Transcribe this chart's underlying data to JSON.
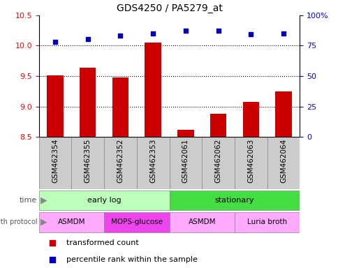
{
  "title": "GDS4250 / PA5279_at",
  "samples": [
    "GSM462354",
    "GSM462355",
    "GSM462352",
    "GSM462353",
    "GSM462061",
    "GSM462062",
    "GSM462063",
    "GSM462064"
  ],
  "bar_values": [
    9.51,
    9.64,
    9.48,
    10.05,
    8.62,
    8.88,
    9.08,
    9.25
  ],
  "percentile_values": [
    78,
    80,
    83,
    85,
    87,
    87,
    84,
    85
  ],
  "ylim_left": [
    8.5,
    10.5
  ],
  "ylim_right": [
    0,
    100
  ],
  "yticks_left": [
    8.5,
    9.0,
    9.5,
    10.0,
    10.5
  ],
  "yticks_right": [
    0,
    25,
    50,
    75,
    100
  ],
  "ytick_labels_right": [
    "0",
    "25",
    "50",
    "75",
    "100%"
  ],
  "bar_color": "#cc0000",
  "dot_color": "#0000bb",
  "bar_bottom": 8.5,
  "dotted_line_y": [
    9.0,
    9.5,
    10.0
  ],
  "time_early_color": "#bbffbb",
  "time_stationary_color": "#44dd44",
  "growth_asmdm_color": "#ffaaff",
  "growth_mops_color": "#ee44ee",
  "growth_luria_color": "#ffaaff",
  "sample_label_bg": "#cccccc",
  "legend_red": "#cc0000",
  "legend_blue": "#0000bb"
}
